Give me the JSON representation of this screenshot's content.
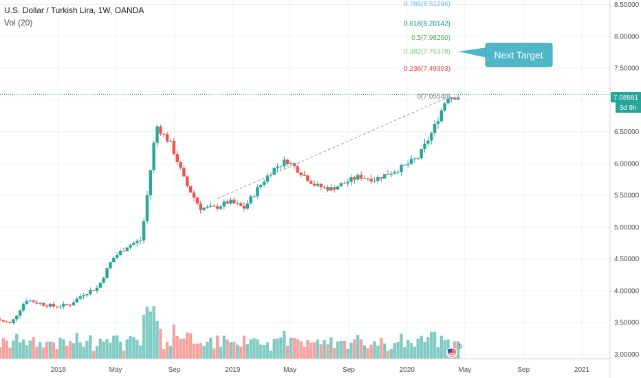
{
  "legend": {
    "title": "U.S. Dollar / Turkish Lira, 1W, OANDA",
    "volume": "Vol (20)"
  },
  "price_axis": {
    "ticks": [
      "8.50000",
      "8.00000",
      "7.50000",
      "7.00000",
      "6.50000",
      "6.00000",
      "5.50000",
      "5.00000",
      "4.50000",
      "4.00000",
      "3.50000",
      "3.00000"
    ],
    "last_price": "7.08581",
    "countdown": "3d 9h"
  },
  "time_axis": {
    "ticks": [
      "2018",
      "May",
      "Sep",
      "2019",
      "May",
      "Sep",
      "2020",
      "May",
      "Sep",
      "2021"
    ]
  },
  "callout": {
    "text": "Next Target"
  },
  "event_badge": {
    "count": "5"
  },
  "colors": {
    "up": "#26a69a",
    "down": "#ef5350",
    "vol_up": "#80cbc4",
    "vol_down": "#f5a3a1",
    "callout": "#4db6c7",
    "price_badge": "#26a69a"
  },
  "chart_data": {
    "type": "candlestick",
    "title": "U.S. Dollar / Turkish Lira, 1W, OANDA",
    "ylim": [
      2.93,
      8.57
    ],
    "x_range": [
      "2017-09",
      "2021-03"
    ],
    "fib_levels": [
      {
        "label": "0.786(8.51296)",
        "value": 8.51296,
        "color": "#64b5f6"
      },
      {
        "label": "0.618(8.20142)",
        "value": 8.20142,
        "color": "#009688"
      },
      {
        "label": "0.5(7.98260)",
        "value": 7.9826,
        "color": "#4caf50"
      },
      {
        "label": "0.382(7.76378)",
        "value": 7.76378,
        "color": "#81c784"
      },
      {
        "label": "0.236(7.49303)",
        "value": 7.49303,
        "color": "#f44336"
      },
      {
        "label": "0(7.05540)",
        "value": 7.0554,
        "color": "#787b86"
      }
    ],
    "trendline": {
      "from": {
        "date": "2018-12",
        "value": 5.45
      },
      "to": {
        "date": "2020-04",
        "value": 7.06
      }
    },
    "series": [
      {
        "name": "price",
        "points": [
          [
            "2017-09",
            3.55
          ],
          [
            "2017-10",
            3.48
          ],
          [
            "2017-11",
            3.86
          ],
          [
            "2017-12",
            3.8
          ],
          [
            "2018-01",
            3.75
          ],
          [
            "2018-02",
            3.78
          ],
          [
            "2018-03",
            3.95
          ],
          [
            "2018-04",
            4.05
          ],
          [
            "2018-05",
            4.5
          ],
          [
            "2018-06",
            4.7
          ],
          [
            "2018-07",
            4.8
          ],
          [
            "2018-08",
            6.6
          ],
          [
            "2018-09",
            6.3
          ],
          [
            "2018-10",
            5.7
          ],
          [
            "2018-11",
            5.3
          ],
          [
            "2018-12",
            5.3
          ],
          [
            "2019-01",
            5.4
          ],
          [
            "2019-02",
            5.3
          ],
          [
            "2019-03",
            5.6
          ],
          [
            "2019-04",
            5.9
          ],
          [
            "2019-05",
            6.05
          ],
          [
            "2019-06",
            5.85
          ],
          [
            "2019-07",
            5.65
          ],
          [
            "2019-08",
            5.6
          ],
          [
            "2019-09",
            5.7
          ],
          [
            "2019-10",
            5.8
          ],
          [
            "2019-11",
            5.75
          ],
          [
            "2019-12",
            5.85
          ],
          [
            "2020-01",
            5.95
          ],
          [
            "2020-02",
            6.1
          ],
          [
            "2020-03",
            6.5
          ],
          [
            "2020-04",
            7.05
          ]
        ]
      }
    ]
  }
}
